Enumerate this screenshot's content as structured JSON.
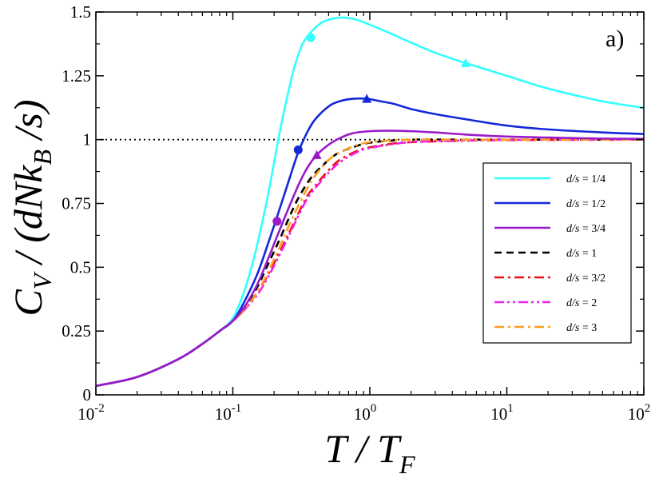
{
  "chart_data": {
    "type": "line",
    "panel_label": "a)",
    "xlabel": {
      "main": "T / T",
      "sub": "F"
    },
    "ylabel": {
      "pre": "C",
      "sub1": "V",
      "mid": " / (dNk",
      "sub2": "B",
      "post": " /s)"
    },
    "xscale": "log",
    "xlim": [
      0.01,
      100
    ],
    "ylim": [
      0,
      1.5
    ],
    "x_ticks": [
      {
        "base": "10",
        "exp": "-2",
        "value": 0.01
      },
      {
        "base": "10",
        "exp": "-1",
        "value": 0.1
      },
      {
        "base": "10",
        "exp": "0",
        "value": 1
      },
      {
        "base": "10",
        "exp": "1",
        "value": 10
      },
      {
        "base": "10",
        "exp": "2",
        "value": 100
      }
    ],
    "y_ticks": [
      {
        "label": "0",
        "value": 0
      },
      {
        "label": "0.25",
        "value": 0.25
      },
      {
        "label": "0.5",
        "value": 0.5
      },
      {
        "label": "0.75",
        "value": 0.75
      },
      {
        "label": "1",
        "value": 1
      },
      {
        "label": "1.25",
        "value": 1.25
      },
      {
        "label": "1.5",
        "value": 1.5
      }
    ],
    "reference_line": {
      "y": 1,
      "style": "dotted",
      "color": "#000000"
    },
    "legend_position": "right-middle",
    "series": [
      {
        "name": "d/s",
        "label": " = 1/4",
        "color": "#33ffff",
        "dash": "solid",
        "x": [
          0.01,
          0.02,
          0.04,
          0.06,
          0.08,
          0.1,
          0.12,
          0.14,
          0.16,
          0.18,
          0.2,
          0.22,
          0.25,
          0.28,
          0.32,
          0.37,
          0.45,
          0.55,
          0.65,
          0.8,
          1,
          1.5,
          2,
          3,
          5,
          10,
          20,
          50,
          100
        ],
        "y": [
          0.035,
          0.07,
          0.14,
          0.2,
          0.25,
          0.3,
          0.4,
          0.52,
          0.65,
          0.78,
          0.91,
          1.03,
          1.17,
          1.28,
          1.37,
          1.42,
          1.46,
          1.475,
          1.478,
          1.47,
          1.45,
          1.41,
          1.38,
          1.34,
          1.3,
          1.25,
          1.2,
          1.15,
          1.125
        ],
        "markers": [
          {
            "x": 0.37,
            "y": 1.4,
            "shape": "circle"
          },
          {
            "x": 5,
            "y": 1.3,
            "shape": "triangle"
          }
        ]
      },
      {
        "name": "d/s",
        "label": " = 1/2",
        "color": "#1428d8",
        "dash": "solid",
        "x": [
          0.01,
          0.02,
          0.04,
          0.06,
          0.08,
          0.1,
          0.12,
          0.15,
          0.18,
          0.22,
          0.26,
          0.3,
          0.35,
          0.4,
          0.5,
          0.6,
          0.75,
          0.95,
          1.2,
          1.5,
          2,
          3,
          5,
          10,
          20,
          50,
          100
        ],
        "y": [
          0.035,
          0.07,
          0.14,
          0.2,
          0.25,
          0.29,
          0.36,
          0.47,
          0.59,
          0.73,
          0.85,
          0.95,
          1.03,
          1.08,
          1.13,
          1.15,
          1.16,
          1.16,
          1.15,
          1.14,
          1.12,
          1.1,
          1.08,
          1.055,
          1.04,
          1.028,
          1.022
        ],
        "markers": [
          {
            "x": 0.3,
            "y": 0.96,
            "shape": "circle"
          },
          {
            "x": 0.95,
            "y": 1.16,
            "shape": "triangle"
          }
        ]
      },
      {
        "name": "d/s",
        "label": " = 3/4",
        "color": "#9a1ac8",
        "dash": "solid",
        "x": [
          0.01,
          0.02,
          0.04,
          0.06,
          0.08,
          0.1,
          0.12,
          0.15,
          0.18,
          0.21,
          0.25,
          0.3,
          0.35,
          0.41,
          0.5,
          0.6,
          0.75,
          1,
          1.4,
          2,
          3,
          5,
          10,
          20,
          50,
          100
        ],
        "y": [
          0.035,
          0.07,
          0.14,
          0.2,
          0.25,
          0.29,
          0.34,
          0.43,
          0.53,
          0.62,
          0.72,
          0.82,
          0.89,
          0.94,
          0.98,
          1.005,
          1.025,
          1.033,
          1.035,
          1.033,
          1.028,
          1.02,
          1.012,
          1.008,
          1.004,
          1.003
        ],
        "markers": [
          {
            "x": 0.21,
            "y": 0.68,
            "shape": "circle"
          },
          {
            "x": 0.41,
            "y": 0.94,
            "shape": "triangle"
          }
        ]
      },
      {
        "name": "d/s",
        "label": " = 1",
        "color": "#000000",
        "dash": "dashed",
        "x": [
          0.01,
          0.02,
          0.04,
          0.06,
          0.08,
          0.1,
          0.12,
          0.15,
          0.18,
          0.22,
          0.26,
          0.3,
          0.35,
          0.4,
          0.5,
          0.6,
          0.8,
          1,
          1.5,
          2,
          5,
          10,
          100
        ],
        "y": [
          0.035,
          0.07,
          0.14,
          0.2,
          0.25,
          0.29,
          0.34,
          0.42,
          0.51,
          0.61,
          0.7,
          0.77,
          0.83,
          0.87,
          0.92,
          0.95,
          0.975,
          0.988,
          0.997,
          1.0,
          1.0,
          1.0,
          1.0
        ],
        "markers": []
      },
      {
        "name": "d/s",
        "label": " = 3/2",
        "color": "#ee1010",
        "dash": "dashdot",
        "x": [
          0.01,
          0.02,
          0.04,
          0.06,
          0.08,
          0.1,
          0.12,
          0.15,
          0.18,
          0.22,
          0.26,
          0.3,
          0.35,
          0.4,
          0.5,
          0.6,
          0.8,
          1,
          1.5,
          2,
          3,
          5,
          10,
          100
        ],
        "y": [
          0.035,
          0.07,
          0.14,
          0.2,
          0.25,
          0.29,
          0.33,
          0.4,
          0.47,
          0.56,
          0.64,
          0.71,
          0.78,
          0.82,
          0.88,
          0.92,
          0.955,
          0.97,
          0.985,
          0.99,
          0.993,
          0.996,
          0.998,
          1.0
        ],
        "markers": []
      },
      {
        "name": "d/s",
        "label": " = 2",
        "color": "#ee22ee",
        "dash": "dashdotdot",
        "x": [
          0.01,
          0.02,
          0.04,
          0.06,
          0.08,
          0.1,
          0.12,
          0.15,
          0.18,
          0.22,
          0.26,
          0.3,
          0.35,
          0.4,
          0.5,
          0.6,
          0.8,
          1,
          1.5,
          2,
          3,
          5,
          10,
          100
        ],
        "y": [
          0.035,
          0.07,
          0.14,
          0.2,
          0.25,
          0.29,
          0.33,
          0.39,
          0.46,
          0.55,
          0.63,
          0.7,
          0.77,
          0.81,
          0.87,
          0.91,
          0.95,
          0.967,
          0.983,
          0.99,
          0.994,
          0.997,
          0.999,
          1.0
        ],
        "markers": []
      },
      {
        "name": "d/s",
        "label": " = 3",
        "color": "#ffa020",
        "dash": "dashdot",
        "x": [
          0.01,
          0.02,
          0.04,
          0.06,
          0.08,
          0.1,
          0.12,
          0.15,
          0.18,
          0.22,
          0.26,
          0.3,
          0.35,
          0.4,
          0.5,
          0.6,
          0.8,
          1,
          1.5,
          2,
          5,
          10,
          100
        ],
        "y": [
          0.035,
          0.07,
          0.14,
          0.2,
          0.25,
          0.29,
          0.33,
          0.4,
          0.48,
          0.58,
          0.67,
          0.74,
          0.81,
          0.86,
          0.92,
          0.95,
          0.978,
          0.99,
          0.998,
          1.0,
          1.0,
          1.0,
          1.0
        ],
        "markers": []
      }
    ]
  }
}
